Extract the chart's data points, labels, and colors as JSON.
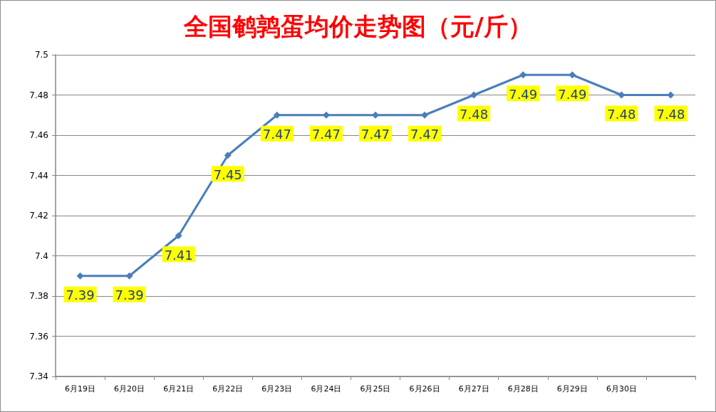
{
  "chart_data": {
    "type": "line",
    "title": "全国鹌鹑蛋均价走势图（元/斤）",
    "categories": [
      "6月19日",
      "6月20日",
      "6月21日",
      "6月22日",
      "6月23日",
      "6月24日",
      "6月25日",
      "6月26日",
      "6月27日",
      "6月28日",
      "6月29日",
      "6月30日",
      null
    ],
    "values": [
      7.39,
      7.39,
      7.41,
      7.45,
      7.47,
      7.47,
      7.47,
      7.47,
      7.48,
      7.49,
      7.49,
      7.48,
      7.48
    ],
    "color": "#4a7ebb",
    "ylim": [
      7.34,
      7.5
    ],
    "yticks": [
      7.34,
      7.36,
      7.38,
      7.4,
      7.42,
      7.44,
      7.46,
      7.48,
      7.5
    ],
    "grid": "y",
    "marker": "diamond",
    "data_labels": true
  }
}
